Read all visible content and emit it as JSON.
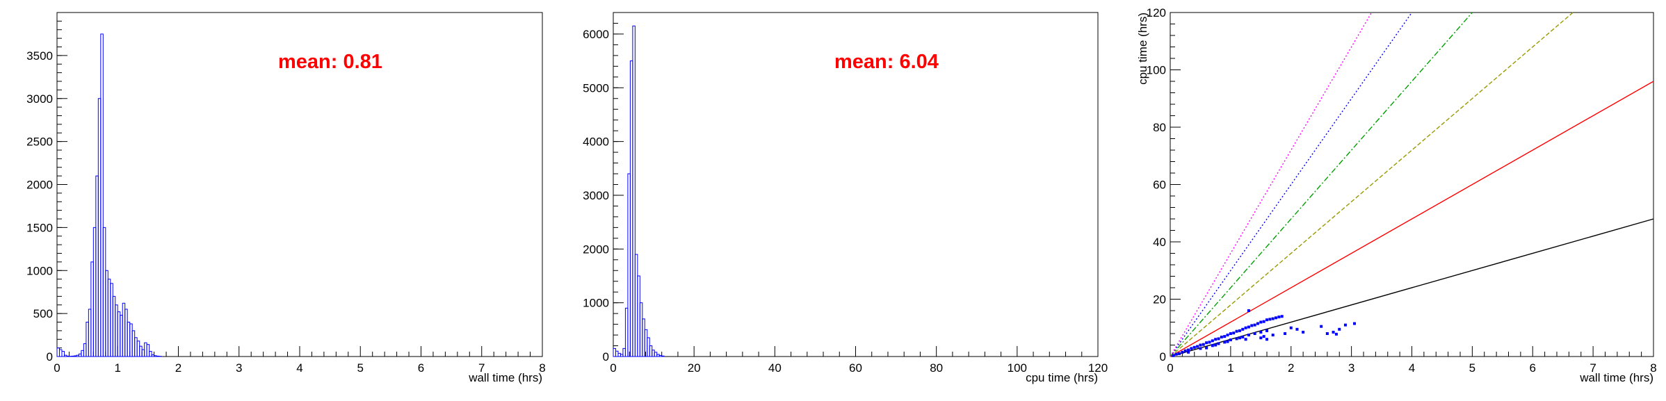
{
  "chart_data": [
    {
      "type": "histogram",
      "xlabel": "wall time (hrs)",
      "ylabel": "",
      "xlim": [
        0,
        8
      ],
      "ylim": [
        0,
        4000
      ],
      "xticks": [
        0,
        1,
        2,
        3,
        4,
        5,
        6,
        7,
        8
      ],
      "yticks": [
        0,
        500,
        1000,
        1500,
        2000,
        2500,
        3000,
        3500
      ],
      "annotation": "mean: 0.81",
      "color": "#0000ff",
      "annotation_color": "#ff0000",
      "bin_width": 0.04,
      "x": [
        0.0,
        0.04,
        0.08,
        0.12,
        0.16,
        0.2,
        0.24,
        0.28,
        0.32,
        0.36,
        0.4,
        0.44,
        0.48,
        0.52,
        0.56,
        0.6,
        0.64,
        0.68,
        0.72,
        0.76,
        0.8,
        0.84,
        0.88,
        0.92,
        0.96,
        1.0,
        1.04,
        1.08,
        1.12,
        1.16,
        1.2,
        1.24,
        1.28,
        1.32,
        1.36,
        1.4,
        1.44,
        1.48,
        1.52,
        1.56,
        1.6,
        1.64,
        1.68,
        1.72
      ],
      "values": [
        100,
        80,
        60,
        15,
        5,
        3,
        5,
        8,
        15,
        30,
        70,
        150,
        400,
        550,
        1100,
        1500,
        2100,
        3000,
        3750,
        1500,
        1000,
        900,
        850,
        700,
        600,
        520,
        480,
        620,
        550,
        400,
        380,
        300,
        220,
        180,
        120,
        80,
        160,
        140,
        60,
        20,
        10,
        5,
        3,
        0
      ]
    },
    {
      "type": "histogram",
      "xlabel": "cpu time (hrs)",
      "ylabel": "",
      "xlim": [
        0,
        120
      ],
      "ylim": [
        0,
        6400
      ],
      "xticks": [
        0,
        20,
        40,
        60,
        80,
        100,
        120
      ],
      "yticks": [
        0,
        1000,
        2000,
        3000,
        4000,
        5000,
        6000
      ],
      "annotation": "mean: 6.04",
      "color": "#0000ff",
      "annotation_color": "#ff0000",
      "bin_width": 0.6,
      "x": [
        0.0,
        0.6,
        1.2,
        1.8,
        2.4,
        3.0,
        3.6,
        4.2,
        4.8,
        5.4,
        6.0,
        6.6,
        7.2,
        7.8,
        8.4,
        9.0,
        9.6,
        10.2,
        10.8,
        11.4,
        12.0,
        12.6
      ],
      "values": [
        150,
        100,
        60,
        40,
        150,
        900,
        3400,
        5500,
        6150,
        1900,
        1500,
        1000,
        700,
        500,
        350,
        200,
        120,
        80,
        40,
        20,
        10,
        0
      ]
    },
    {
      "type": "scatter",
      "xlabel": "wall time (hrs)",
      "ylabel": "cpu time (hrs)",
      "xlim": [
        0,
        8
      ],
      "ylim": [
        0,
        120
      ],
      "xticks": [
        0,
        1,
        2,
        3,
        4,
        5,
        6,
        7,
        8
      ],
      "yticks": [
        0,
        20,
        40,
        60,
        80,
        100,
        120
      ],
      "reference_lines": [
        {
          "slope": 6,
          "color": "#000000",
          "dash": "solid"
        },
        {
          "slope": 12,
          "color": "#ff0000",
          "dash": "solid"
        },
        {
          "slope": 18,
          "color": "#999900",
          "dash": "dash"
        },
        {
          "slope": 24,
          "color": "#00a000",
          "dash": "dashdot"
        },
        {
          "slope": 30,
          "color": "#0000ff",
          "dash": "dot"
        },
        {
          "slope": 36,
          "color": "#ff00ff",
          "dash": "dot"
        }
      ],
      "points_color": "#0000ff",
      "points": [
        [
          0.05,
          0.3
        ],
        [
          0.1,
          0.8
        ],
        [
          0.15,
          1.0
        ],
        [
          0.2,
          1.5
        ],
        [
          0.25,
          2.0
        ],
        [
          0.3,
          2.3
        ],
        [
          0.35,
          2.8
        ],
        [
          0.4,
          3.2
        ],
        [
          0.45,
          3.5
        ],
        [
          0.5,
          4.0
        ],
        [
          0.55,
          4.2
        ],
        [
          0.6,
          4.8
        ],
        [
          0.65,
          5.0
        ],
        [
          0.7,
          5.5
        ],
        [
          0.75,
          6.0
        ],
        [
          0.8,
          6.2
        ],
        [
          0.85,
          6.8
        ],
        [
          0.9,
          7.0
        ],
        [
          0.95,
          7.5
        ],
        [
          1.0,
          8.0
        ],
        [
          1.05,
          8.2
        ],
        [
          1.1,
          8.8
        ],
        [
          1.15,
          9.0
        ],
        [
          1.2,
          9.5
        ],
        [
          1.25,
          10.0
        ],
        [
          1.3,
          10.3
        ],
        [
          1.35,
          10.8
        ],
        [
          1.4,
          11.0
        ],
        [
          1.45,
          11.5
        ],
        [
          1.5,
          12.0
        ],
        [
          1.55,
          12.2
        ],
        [
          1.6,
          12.8
        ],
        [
          1.65,
          13.0
        ],
        [
          1.7,
          13.2
        ],
        [
          1.75,
          13.5
        ],
        [
          1.8,
          13.8
        ],
        [
          1.85,
          14.0
        ],
        [
          0.3,
          1.5
        ],
        [
          0.5,
          2.8
        ],
        [
          0.7,
          3.8
        ],
        [
          0.8,
          4.5
        ],
        [
          0.9,
          5.0
        ],
        [
          1.0,
          5.8
        ],
        [
          1.1,
          6.2
        ],
        [
          1.2,
          6.8
        ],
        [
          1.3,
          7.5
        ],
        [
          1.4,
          8.0
        ],
        [
          1.5,
          8.5
        ],
        [
          1.6,
          9.0
        ],
        [
          0.6,
          3.0
        ],
        [
          0.75,
          4.0
        ],
        [
          0.95,
          5.2
        ],
        [
          1.15,
          6.5
        ],
        [
          1.3,
          16.0
        ],
        [
          1.25,
          6.0
        ],
        [
          1.5,
          6.5
        ],
        [
          1.55,
          7.0
        ],
        [
          1.7,
          7.5
        ],
        [
          1.6,
          6.0
        ],
        [
          1.9,
          8.0
        ],
        [
          2.0,
          10.0
        ],
        [
          2.1,
          9.5
        ],
        [
          2.2,
          8.5
        ],
        [
          2.5,
          10.5
        ],
        [
          2.6,
          8.0
        ],
        [
          2.7,
          8.5
        ],
        [
          2.75,
          7.8
        ],
        [
          2.8,
          9.5
        ],
        [
          2.9,
          11.0
        ],
        [
          3.05,
          11.5
        ]
      ]
    }
  ]
}
